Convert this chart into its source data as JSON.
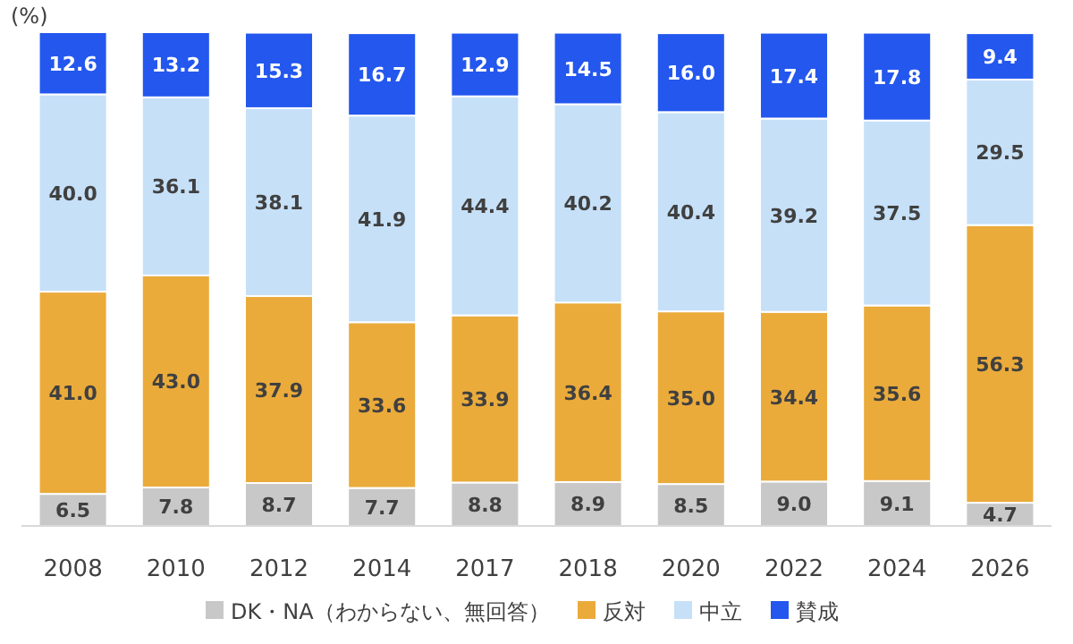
{
  "chart_data": {
    "type": "bar",
    "stacked": true,
    "ylabel": "(%)",
    "tick_labels": "x",
    "legend": "bottom",
    "categories": [
      "2008",
      "2010",
      "2012",
      "2014",
      "2017",
      "2018",
      "2020",
      "2022",
      "2024",
      "2026"
    ],
    "series": [
      {
        "name": "DK・NA（わからない、無回答）",
        "color": "#c8c8c8",
        "values": [
          6.5,
          7.8,
          8.7,
          7.7,
          8.8,
          8.9,
          8.5,
          9.0,
          9.1,
          4.7
        ],
        "value_labels": [
          "6.5",
          "7.8",
          "8.7",
          "7.7",
          "8.8",
          "8.9",
          "8.5",
          "9.0",
          "9.1",
          "4.7"
        ]
      },
      {
        "name": "反対",
        "color": "#eaab3b",
        "values": [
          41.0,
          43.0,
          37.9,
          33.6,
          33.9,
          36.4,
          35.0,
          34.4,
          35.6,
          56.3
        ],
        "value_labels": [
          "41.0",
          "43.0",
          "37.9",
          "33.6",
          "33.9",
          "36.4",
          "35.0",
          "34.4",
          "35.6",
          "56.3"
        ]
      },
      {
        "name": "中立",
        "color": "#c6e0f8",
        "values": [
          40.0,
          36.1,
          38.1,
          41.9,
          44.4,
          40.2,
          40.4,
          39.2,
          37.5,
          29.5
        ],
        "value_labels": [
          "40.0",
          "36.1",
          "38.1",
          "41.9",
          "44.4",
          "40.2",
          "40.4",
          "39.2",
          "37.5",
          "29.5"
        ]
      },
      {
        "name": "賛成",
        "color": "#2357ee",
        "values": [
          12.6,
          13.2,
          15.3,
          16.7,
          12.9,
          14.5,
          16.0,
          17.4,
          17.8,
          9.4
        ],
        "value_labels": [
          "12.6",
          "13.2",
          "15.3",
          "16.7",
          "12.9",
          "14.5",
          "16.0",
          "17.4",
          "17.8",
          "9.4"
        ]
      }
    ]
  }
}
